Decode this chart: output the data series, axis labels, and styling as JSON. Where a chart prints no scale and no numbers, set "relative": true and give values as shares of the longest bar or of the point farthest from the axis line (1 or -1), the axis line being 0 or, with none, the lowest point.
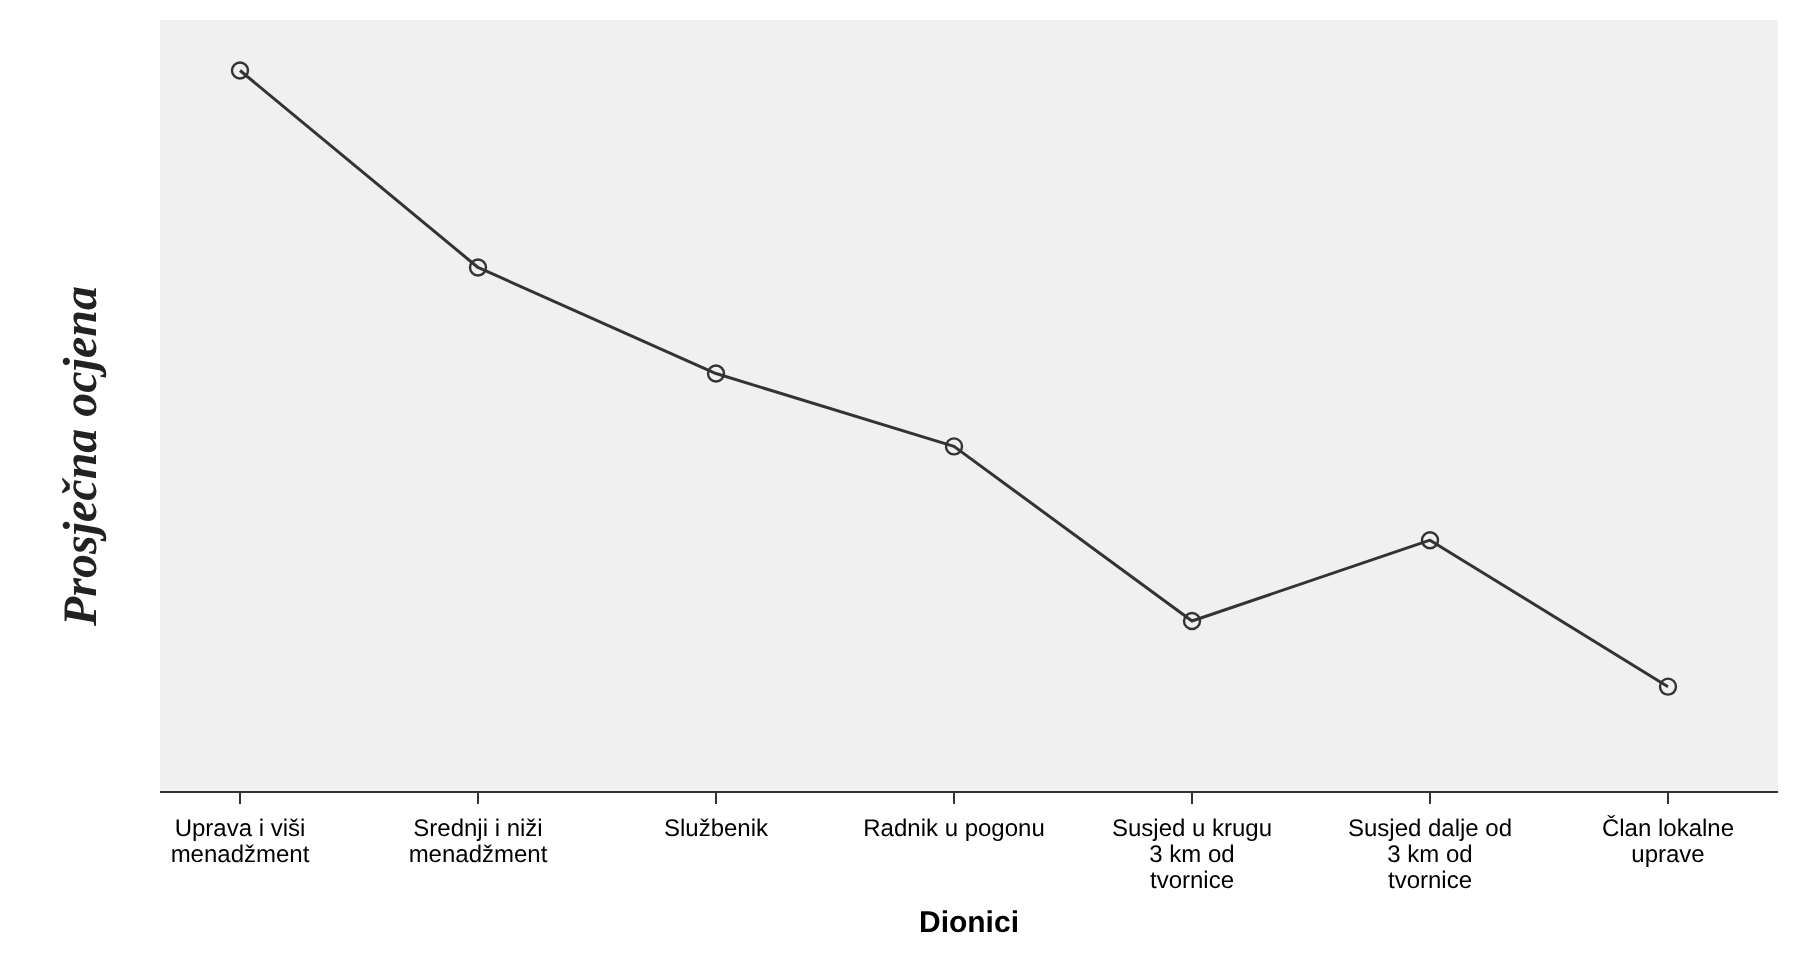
{
  "chart_data": {
    "type": "line",
    "xlabel": "Dionici",
    "ylabel": "Prosječna ocjena",
    "relative": true,
    "categories": [
      "Uprava i viši menadžment",
      "Srednji i niži menadžment",
      "Službenik",
      "Radnik u pogonu",
      "Susjed u krugu 3 km od tvornice",
      "Susjed dalje od 3 km od tvornice",
      "Član lokalne uprave"
    ],
    "series": [
      {
        "color": "#333333",
        "values": [
          1,
          0.727,
          0.58,
          0.479,
          0.237,
          0.349,
          0.146
        ]
      }
    ],
    "marker": "circle",
    "line_style": "solid",
    "grid": false
  }
}
